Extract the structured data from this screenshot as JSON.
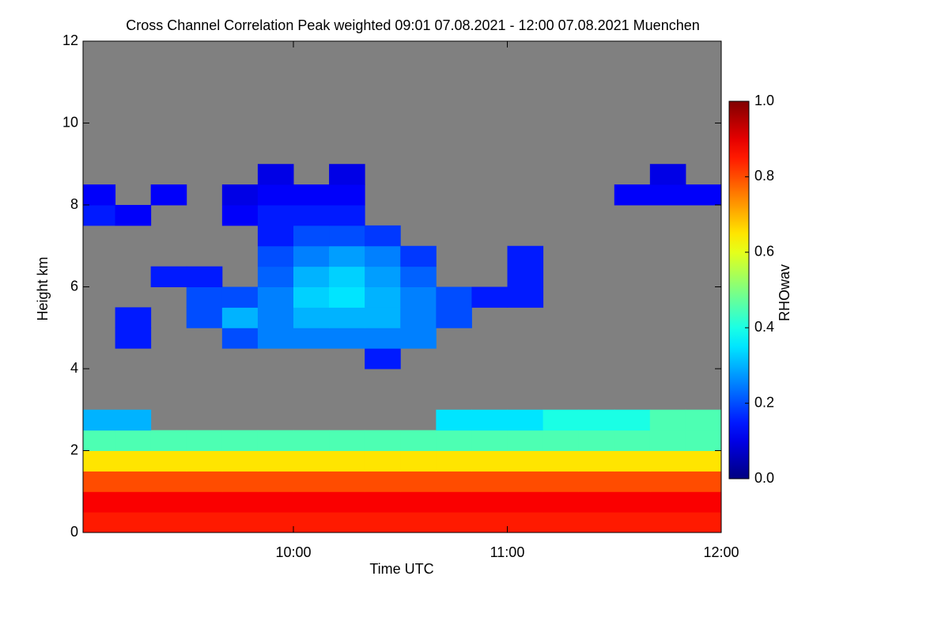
{
  "chart_data": {
    "type": "heatmap",
    "title": "Cross Channel Correlation Peak weighted   09:01 07.08.2021 - 12:00 07.08.2021 Muenchen",
    "x_label": "Time UTC",
    "y_label": "Height km",
    "colorbar_label": "RHOwav",
    "colormap": "jet",
    "background_color": "#808080",
    "xlim": [
      9.0167,
      12.0
    ],
    "xticks": [
      {
        "value": 10,
        "label": "10:00"
      },
      {
        "value": 11,
        "label": "11:00"
      },
      {
        "value": 12,
        "label": "12:00"
      }
    ],
    "ylim": [
      0,
      12
    ],
    "yticks": [
      0,
      2,
      4,
      6,
      8,
      10,
      12
    ],
    "clim": [
      0,
      1
    ],
    "cticks": [
      {
        "value": 0,
        "label": "0.0"
      },
      {
        "value": 0.2,
        "label": "0.2"
      },
      {
        "value": 0.4,
        "label": "0.4"
      },
      {
        "value": 0.6,
        "label": "0.6"
      },
      {
        "value": 0.8,
        "label": "0.8"
      },
      {
        "value": 1,
        "label": "1.0"
      }
    ],
    "xbins": [
      9.0167,
      9.1667,
      9.3333,
      9.5,
      9.6667,
      9.8333,
      10,
      10.1667,
      10.3333,
      10.5,
      10.6667,
      10.8333,
      11,
      11.1667,
      11.3333,
      11.5,
      11.6667,
      11.8333,
      12
    ],
    "ybins": [
      0,
      0.5,
      1,
      1.5,
      2,
      2.5,
      3,
      3.5,
      4,
      4.5,
      5,
      5.5,
      6,
      6.5,
      7,
      7.5,
      8,
      8.5,
      9
    ],
    "z": [
      [
        0.85,
        0.85,
        0.85,
        0.85,
        0.85,
        0.85,
        0.85,
        0.85,
        0.85,
        0.85,
        0.85,
        0.85,
        0.85,
        0.85,
        0.85,
        0.85,
        0.85,
        0.85
      ],
      [
        0.88,
        0.88,
        0.88,
        0.88,
        0.88,
        0.88,
        0.88,
        0.88,
        0.88,
        0.88,
        0.88,
        0.88,
        0.88,
        0.88,
        0.88,
        0.88,
        0.88,
        0.88
      ],
      [
        0.8,
        0.8,
        0.8,
        0.8,
        0.8,
        0.8,
        0.8,
        0.8,
        0.8,
        0.8,
        0.8,
        0.8,
        0.8,
        0.8,
        0.8,
        0.8,
        0.8,
        0.8
      ],
      [
        0.65,
        0.65,
        0.65,
        0.65,
        0.65,
        0.65,
        0.65,
        0.65,
        0.65,
        0.65,
        0.65,
        0.65,
        0.65,
        0.65,
        0.65,
        0.65,
        0.65,
        0.65
      ],
      [
        0.45,
        0.45,
        0.45,
        0.45,
        0.45,
        0.45,
        0.45,
        0.45,
        0.45,
        0.45,
        0.45,
        0.45,
        0.45,
        0.45,
        0.45,
        0.45,
        0.45,
        0.45
      ],
      [
        0.3,
        0.3,
        null,
        null,
        null,
        null,
        null,
        null,
        null,
        null,
        0.35,
        0.35,
        0.35,
        0.4,
        0.4,
        0.4,
        0.45,
        0.45
      ],
      [
        null,
        null,
        null,
        null,
        null,
        null,
        null,
        null,
        null,
        null,
        null,
        null,
        null,
        null,
        null,
        null,
        null,
        null
      ],
      [
        null,
        null,
        null,
        null,
        null,
        null,
        null,
        null,
        null,
        null,
        null,
        null,
        null,
        null,
        null,
        null,
        null,
        null
      ],
      [
        null,
        null,
        null,
        null,
        null,
        null,
        null,
        null,
        0.15,
        null,
        null,
        null,
        null,
        null,
        null,
        null,
        null,
        null
      ],
      [
        null,
        0.15,
        null,
        null,
        0.2,
        0.25,
        0.25,
        0.25,
        0.25,
        0.25,
        null,
        null,
        null,
        null,
        null,
        null,
        null,
        null
      ],
      [
        null,
        0.15,
        null,
        0.2,
        0.3,
        0.25,
        0.3,
        0.3,
        0.3,
        0.25,
        0.2,
        null,
        null,
        null,
        null,
        null,
        null,
        null
      ],
      [
        null,
        null,
        null,
        0.2,
        0.2,
        0.25,
        0.33,
        0.35,
        0.3,
        0.25,
        0.2,
        0.15,
        0.15,
        null,
        null,
        null,
        null,
        null
      ],
      [
        null,
        null,
        0.15,
        0.15,
        null,
        0.22,
        0.3,
        0.33,
        0.28,
        0.22,
        null,
        null,
        0.15,
        null,
        null,
        null,
        null,
        null
      ],
      [
        null,
        null,
        null,
        null,
        null,
        0.2,
        0.25,
        0.28,
        0.25,
        0.18,
        null,
        null,
        0.15,
        null,
        null,
        null,
        null,
        null
      ],
      [
        null,
        null,
        null,
        null,
        null,
        0.15,
        0.2,
        0.2,
        0.18,
        null,
        null,
        null,
        null,
        null,
        null,
        null,
        null,
        null
      ],
      [
        0.15,
        0.12,
        null,
        null,
        0.12,
        0.15,
        0.15,
        0.15,
        null,
        null,
        null,
        null,
        null,
        null,
        null,
        null,
        null,
        null
      ],
      [
        0.12,
        null,
        0.12,
        null,
        0.1,
        0.12,
        0.12,
        0.12,
        null,
        null,
        null,
        null,
        null,
        null,
        null,
        0.12,
        0.12,
        0.12
      ],
      [
        null,
        null,
        null,
        null,
        null,
        0.1,
        null,
        0.1,
        null,
        null,
        null,
        null,
        null,
        null,
        null,
        null,
        0.1,
        null
      ]
    ]
  }
}
